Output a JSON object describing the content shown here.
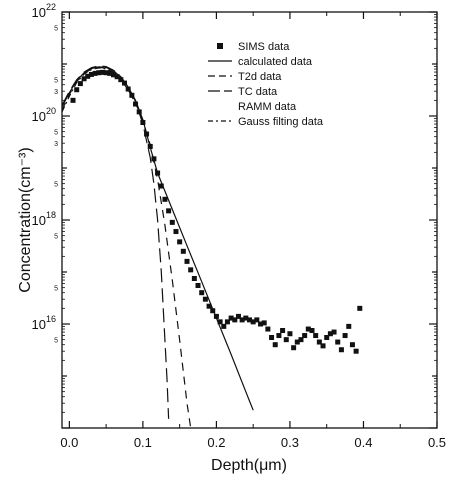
{
  "chart_data": {
    "type": "scatter",
    "title": "",
    "xlabel": "Depth(μm)",
    "ylabel": "Concentration(cm⁻³)",
    "x_scale": "linear",
    "y_scale": "log",
    "xlim": [
      -0.01,
      0.5
    ],
    "ylim": [
      100000000000000.0,
      1e+22
    ],
    "x_ticks": [
      {
        "v": 0.0,
        "label": "0.0"
      },
      {
        "v": 0.1,
        "label": "0.1"
      },
      {
        "v": 0.2,
        "label": "0.2"
      },
      {
        "v": 0.3,
        "label": "0.3"
      },
      {
        "v": 0.4,
        "label": "0.4"
      },
      {
        "v": 0.5,
        "label": "0.5"
      }
    ],
    "y_major_ticks": [
      {
        "exp": 16,
        "base": "10",
        "sup": "16"
      },
      {
        "exp": 18,
        "base": "10",
        "sup": "18"
      },
      {
        "exp": 20,
        "base": "10",
        "sup": "20"
      },
      {
        "exp": 22,
        "base": "10",
        "sup": "22"
      }
    ],
    "y_minor_labels": [
      {
        "v": 5000000000000000.0,
        "label": "5"
      },
      {
        "v": 5e+16,
        "label": "5"
      },
      {
        "v": 5e+17,
        "label": "5"
      },
      {
        "v": 5e+18,
        "label": "5"
      },
      {
        "v": 5e+19,
        "label": "5"
      },
      {
        "v": 5e+20,
        "label": "5"
      },
      {
        "v": 5e+21,
        "label": "5"
      },
      {
        "v": 3e+19,
        "label": "3"
      },
      {
        "v": 3e+20,
        "label": "3"
      }
    ],
    "legend_position": "top-right",
    "series": [
      {
        "name": "SIMS data",
        "style": "square-marker",
        "points": [
          [
            0.005,
            2e+20
          ],
          [
            0.01,
            3.2e+20
          ],
          [
            0.015,
            4.2e+20
          ],
          [
            0.02,
            5.2e+20
          ],
          [
            0.025,
            5.8e+20
          ],
          [
            0.03,
            6.3e+20
          ],
          [
            0.035,
            6.6e+20
          ],
          [
            0.04,
            6.8e+20
          ],
          [
            0.045,
            6.9e+20
          ],
          [
            0.05,
            6.8e+20
          ],
          [
            0.055,
            6.6e+20
          ],
          [
            0.06,
            6.2e+20
          ],
          [
            0.065,
            5.7e+20
          ],
          [
            0.07,
            5e+20
          ],
          [
            0.075,
            4.3e+20
          ],
          [
            0.08,
            3.3e+20
          ],
          [
            0.085,
            2.5e+20
          ],
          [
            0.09,
            1.7e+20
          ],
          [
            0.095,
            1.2e+20
          ],
          [
            0.1,
            7.5e+19
          ],
          [
            0.105,
            4.5e+19
          ],
          [
            0.11,
            2.6e+19
          ],
          [
            0.115,
            1.5e+19
          ],
          [
            0.12,
            8e+18
          ],
          [
            0.125,
            4.5e+18
          ],
          [
            0.13,
            2.5e+18
          ],
          [
            0.135,
            1.5e+18
          ],
          [
            0.14,
            9e+17
          ],
          [
            0.145,
            6e+17
          ],
          [
            0.15,
            3.8e+17
          ],
          [
            0.155,
            2.5e+17
          ],
          [
            0.16,
            1.6e+17
          ],
          [
            0.165,
            1.1e+17
          ],
          [
            0.17,
            7.5e+16
          ],
          [
            0.175,
            5.5e+16
          ],
          [
            0.18,
            4e+16
          ],
          [
            0.185,
            3e+16
          ],
          [
            0.19,
            2.2e+16
          ],
          [
            0.195,
            1.8e+16
          ],
          [
            0.2,
            1.4e+16
          ],
          [
            0.205,
            1.1e+16
          ],
          [
            0.21,
            9000000000000000.0
          ],
          [
            0.215,
            1.1e+16
          ],
          [
            0.22,
            1.3e+16
          ],
          [
            0.225,
            1.2e+16
          ],
          [
            0.23,
            1.4e+16
          ],
          [
            0.235,
            1.2e+16
          ],
          [
            0.24,
            1.3e+16
          ],
          [
            0.245,
            1.2e+16
          ],
          [
            0.25,
            1.1e+16
          ],
          [
            0.255,
            1.2e+16
          ],
          [
            0.26,
            1e+16
          ],
          [
            0.265,
            1.05e+16
          ],
          [
            0.27,
            8000000000000000.0
          ],
          [
            0.275,
            5500000000000000.0
          ],
          [
            0.28,
            4000000000000000.0
          ],
          [
            0.285,
            6000000000000000.0
          ],
          [
            0.29,
            7500000000000000.0
          ],
          [
            0.295,
            5000000000000000.0
          ],
          [
            0.3,
            6500000000000000.0
          ],
          [
            0.305,
            3500000000000000.0
          ],
          [
            0.31,
            4500000000000000.0
          ],
          [
            0.315,
            5000000000000000.0
          ],
          [
            0.32,
            6000000000000000.0
          ],
          [
            0.325,
            8000000000000000.0
          ],
          [
            0.33,
            7500000000000000.0
          ],
          [
            0.335,
            6000000000000000.0
          ],
          [
            0.34,
            4500000000000000.0
          ],
          [
            0.345,
            3800000000000000.0
          ],
          [
            0.35,
            5500000000000000.0
          ],
          [
            0.355,
            6500000000000000.0
          ],
          [
            0.36,
            7000000000000000.0
          ],
          [
            0.365,
            4500000000000000.0
          ],
          [
            0.37,
            3200000000000000.0
          ],
          [
            0.375,
            6000000000000000.0
          ],
          [
            0.38,
            9000000000000000.0
          ],
          [
            0.385,
            4000000000000000.0
          ],
          [
            0.39,
            3000000000000000.0
          ],
          [
            0.395,
            2e+16
          ]
        ]
      },
      {
        "name": "calculated data",
        "style": "solid",
        "points": [
          [
            -0.01,
            1.5e+20
          ],
          [
            0.0,
            2.8e+20
          ],
          [
            0.01,
            4.8e+20
          ],
          [
            0.02,
            6.8e+20
          ],
          [
            0.03,
            8.2e+20
          ],
          [
            0.04,
            8.8e+20
          ],
          [
            0.05,
            8.6e+20
          ],
          [
            0.06,
            7.4e+20
          ],
          [
            0.07,
            5.6e+20
          ],
          [
            0.08,
            3.6e+20
          ],
          [
            0.09,
            2e+20
          ],
          [
            0.1,
            8.5e+19
          ],
          [
            0.11,
            2.5e+19
          ],
          [
            0.12,
            8e+18
          ],
          [
            0.14,
            1.6e+18
          ],
          [
            0.16,
            3.2e+17
          ],
          [
            0.18,
            6.5e+16
          ],
          [
            0.2,
            1.3e+16
          ],
          [
            0.22,
            2600000000000000.0
          ],
          [
            0.24,
            500000000000000.0
          ],
          [
            0.245,
            330000000000000.0
          ],
          [
            0.25,
            220000000000000.0
          ]
        ]
      },
      {
        "name": "T2d data",
        "style": "dashed",
        "points": [
          [
            -0.01,
            1.3e+20
          ],
          [
            0.0,
            2.6e+20
          ],
          [
            0.01,
            4.6e+20
          ],
          [
            0.02,
            6.6e+20
          ],
          [
            0.03,
            8e+20
          ],
          [
            0.04,
            8.6e+20
          ],
          [
            0.05,
            8.3e+20
          ],
          [
            0.06,
            7e+20
          ],
          [
            0.07,
            5.2e+20
          ],
          [
            0.08,
            3.3e+20
          ],
          [
            0.09,
            1.8e+20
          ],
          [
            0.1,
            8e+19
          ],
          [
            0.11,
            2.8e+19
          ],
          [
            0.12,
            6e+18
          ],
          [
            0.13,
            8e+17
          ],
          [
            0.14,
            7e+16
          ],
          [
            0.15,
            5000000000000000.0
          ],
          [
            0.16,
            300000000000000.0
          ],
          [
            0.165,
            80000000000000.0
          ]
        ]
      },
      {
        "name": "TC data",
        "style": "long-dash",
        "points": [
          [
            -0.01,
            1.6e+20
          ],
          [
            0.0,
            3e+20
          ],
          [
            0.01,
            5e+20
          ],
          [
            0.02,
            7e+20
          ],
          [
            0.03,
            8.5e+20
          ],
          [
            0.04,
            9.2e+20
          ],
          [
            0.05,
            8.9e+20
          ],
          [
            0.06,
            7.6e+20
          ],
          [
            0.07,
            5.7e+20
          ],
          [
            0.08,
            3.6e+20
          ],
          [
            0.09,
            1.9e+20
          ],
          [
            0.1,
            7e+19
          ],
          [
            0.11,
            1.6e+19
          ],
          [
            0.115,
            5e+18
          ],
          [
            0.12,
            1e+18
          ],
          [
            0.125,
            1e+17
          ],
          [
            0.13,
            5000000000000000.0
          ],
          [
            0.133,
            800000000000000.0
          ],
          [
            0.135,
            150000000000000.0
          ]
        ]
      },
      {
        "name": "RAMM data",
        "style": "none",
        "points": []
      },
      {
        "name": "Gauss filting data",
        "style": "dash-dot",
        "points": [
          [
            -0.01,
            1.2e+20
          ],
          [
            0.0,
            2.4e+20
          ],
          [
            0.01,
            4.4e+20
          ],
          [
            0.02,
            6.4e+20
          ],
          [
            0.03,
            7.8e+20
          ],
          [
            0.04,
            8.4e+20
          ],
          [
            0.05,
            8.1e+20
          ],
          [
            0.06,
            6.8e+20
          ],
          [
            0.07,
            5e+20
          ],
          [
            0.08,
            3.2e+20
          ],
          [
            0.09,
            1.75e+20
          ],
          [
            0.1,
            8e+19
          ],
          [
            0.105,
            4.5e+19
          ]
        ]
      }
    ]
  }
}
